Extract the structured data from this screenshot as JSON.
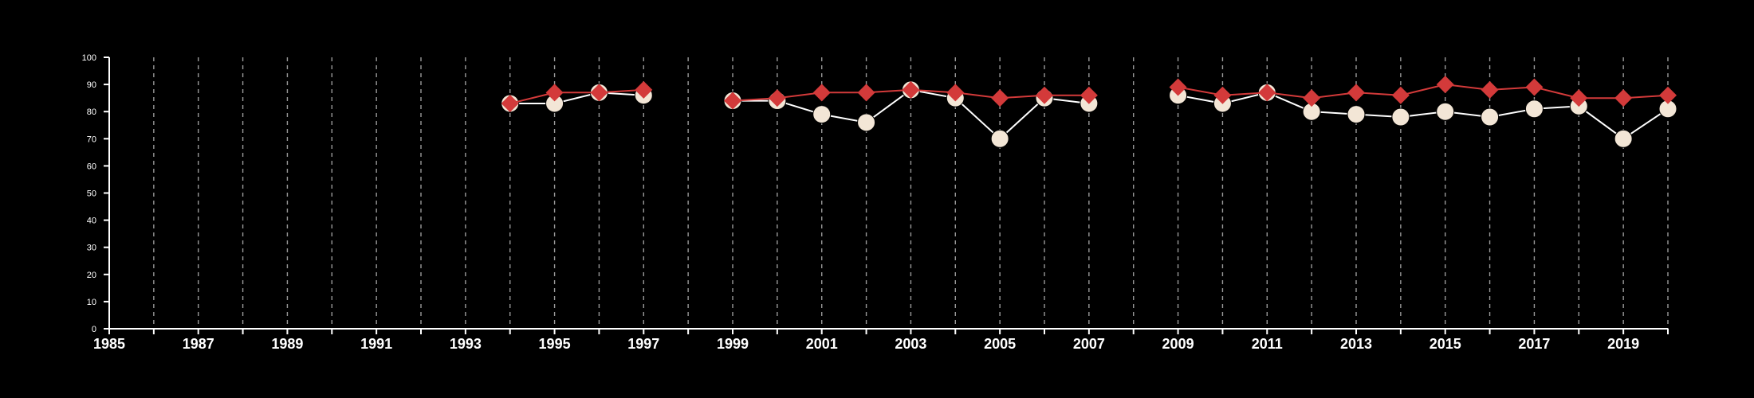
{
  "chart_data": {
    "type": "line",
    "x": [
      1994,
      1995,
      1996,
      1997,
      1999,
      2000,
      2001,
      2002,
      2003,
      2004,
      2005,
      2006,
      2007,
      2009,
      2010,
      2011,
      2012,
      2013,
      2014,
      2015,
      2016,
      2017,
      2018,
      2019,
      2020
    ],
    "segments": [
      [
        1994,
        1997
      ],
      [
        1999,
        2007
      ],
      [
        2009,
        2020
      ]
    ],
    "series": [
      {
        "marker": "circle",
        "color": "#f3e6d6",
        "line_color": "#ffffff",
        "values": [
          83,
          83,
          87,
          86,
          84,
          84,
          79,
          76,
          88,
          85,
          70,
          85,
          83,
          86,
          83,
          87,
          80,
          79,
          78,
          80,
          78,
          81,
          82,
          70,
          81
        ]
      },
      {
        "marker": "diamond",
        "color": "#d33a3a",
        "line_color": "#d33a3a",
        "values": [
          83,
          87,
          87,
          88,
          84,
          85,
          87,
          87,
          88,
          87,
          85,
          86,
          86,
          89,
          86,
          87,
          85,
          87,
          86,
          90,
          88,
          89,
          85,
          85,
          86
        ]
      }
    ],
    "xlim": [
      1985,
      2020
    ],
    "ylim": [
      0,
      100
    ],
    "y_ticks": [
      "0",
      "10",
      "20",
      "30",
      "40",
      "50",
      "60",
      "70",
      "80",
      "90",
      "100"
    ],
    "x_tick_labels": [
      "1985",
      "1987",
      "1989",
      "1991",
      "1993",
      "1995",
      "1997",
      "1999",
      "2001",
      "2003",
      "2005",
      "2007",
      "2009",
      "2011",
      "2013",
      "2015",
      "2017",
      "2019"
    ],
    "vertical_gridlines": "dashed, every year",
    "title": "",
    "xlabel": "",
    "ylabel": ""
  }
}
